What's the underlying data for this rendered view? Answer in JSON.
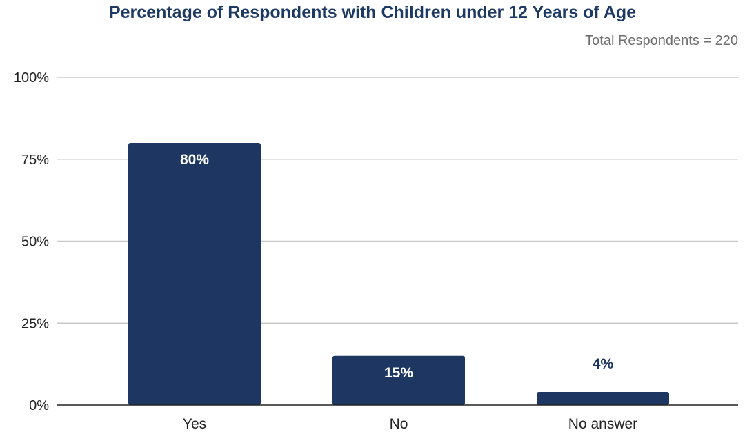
{
  "chart_data": {
    "type": "bar",
    "title": "Percentage of Respondents with Children under 12 Years of Age",
    "subtitle": "Total Respondents = 220",
    "xlabel": "",
    "ylabel": "",
    "categories": [
      "Yes",
      "No",
      "No answer"
    ],
    "values": [
      80,
      15,
      4
    ],
    "data_labels": [
      "80%",
      "15%",
      "4%"
    ],
    "ylim": [
      0,
      100
    ],
    "yticks": [
      0,
      25,
      50,
      75,
      100
    ],
    "ytick_labels": [
      "0%",
      "25%",
      "50%",
      "75%",
      "100%"
    ],
    "grid": true,
    "legend": "none",
    "colors": {
      "bar": "#1d3662",
      "title": "#1d3a64",
      "label_inside": "#ffffff",
      "label_outside": "#1d3662",
      "grid": "#c8c8c8",
      "axis": "#222222"
    }
  }
}
